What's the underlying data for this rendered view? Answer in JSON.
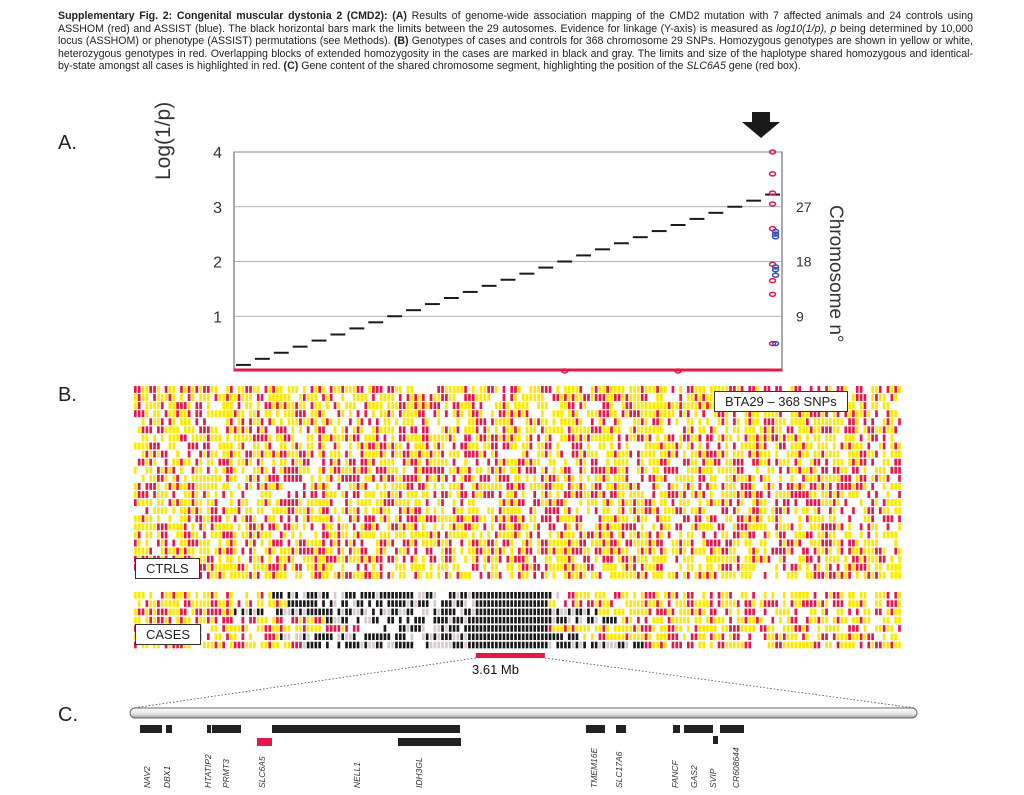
{
  "caption": {
    "fig_label": "Supplementary Fig. 2: Congenital muscular dystonia 2 (CMD2):",
    "part_a_tag": "(A)",
    "part_a": "Results of genome-wide association mapping of the CMD2 mutation with 7 affected animals and 24 controls using ASSHOM (red) and ASSIST (blue). The black horizontal bars mark the limits between the 29 autosomes. Evidence for linkage (Y-axis) is measured as",
    "part_a_formula": "log10(1/p), p",
    "part_a_cont": "being determined by 10,000 locus (ASSHOM) or phenotype (ASSIST) permutations (see Methods).",
    "part_b_tag": "(B)",
    "part_b": "Genotypes of cases and controls for 368 chromosome 29 SNPs. Homozygous genotypes are shown in yellow or white, heterozygous genotypes in red. Overlapping blocks of extended homozygosity in the cases are marked in black and gray. The limits and size of the haplotype shared homozygous and identical-by-state amongst all cases is highlighted in red.",
    "part_c_tag": "(C)",
    "part_c": "Gene content of the shared chromosome segment, highlighting the position of the",
    "part_c_gene": "SLC6A5",
    "part_c_end": "gene (red box)."
  },
  "panels": {
    "a": "A.",
    "b": "B.",
    "c": "C."
  },
  "colors": {
    "red": "#e8174a",
    "yellow": "#fde800",
    "black": "#1a1a1a",
    "blue": "#3050c0",
    "arrow": "#1a1a1a"
  },
  "chart_data": {
    "type": "scatter",
    "ylabel": "Log(1/p)",
    "y2label": "Chromosome n°",
    "ylim": [
      0,
      4
    ],
    "yticks": [
      1,
      2,
      3,
      4
    ],
    "y2lim": [
      0,
      36
    ],
    "y2ticks": [
      9,
      18,
      27
    ],
    "grid": true,
    "chromosome_count": 29,
    "series": [
      {
        "name": "ASSHOM",
        "color": "#e8174a",
        "x": [
          29,
          29,
          29,
          29,
          29,
          29,
          29,
          29,
          29,
          24,
          18
        ],
        "y": [
          4.0,
          3.6,
          3.25,
          3.05,
          2.6,
          1.95,
          1.65,
          1.4,
          0.5,
          0.0,
          0.0
        ]
      },
      {
        "name": "ASSIST",
        "color": "#3050c0",
        "x": [
          29,
          29,
          29,
          29,
          29,
          29,
          29
        ],
        "y": [
          2.55,
          2.5,
          2.45,
          1.9,
          1.85,
          1.75,
          0.5
        ]
      }
    ],
    "highlight_chromosome": 29
  },
  "genotypes": {
    "label": "BTA29 – 368 SNPs",
    "ctrl_label": "CTRLS",
    "case_label": "CASES",
    "snp_count": 368,
    "control_count": 24,
    "case_count": 7,
    "shared_region_mb": "3.61 Mb"
  },
  "genes": [
    "NAV2",
    "DBX1",
    "HTATIP2",
    "PRMT3",
    "SLC6A5",
    "NELL1",
    "IDH3GL",
    "TMEM16E",
    "SLC17A6",
    "FANCF",
    "GAS2",
    "SVIP",
    "CR608644"
  ],
  "highlight_gene": "SLC6A5"
}
